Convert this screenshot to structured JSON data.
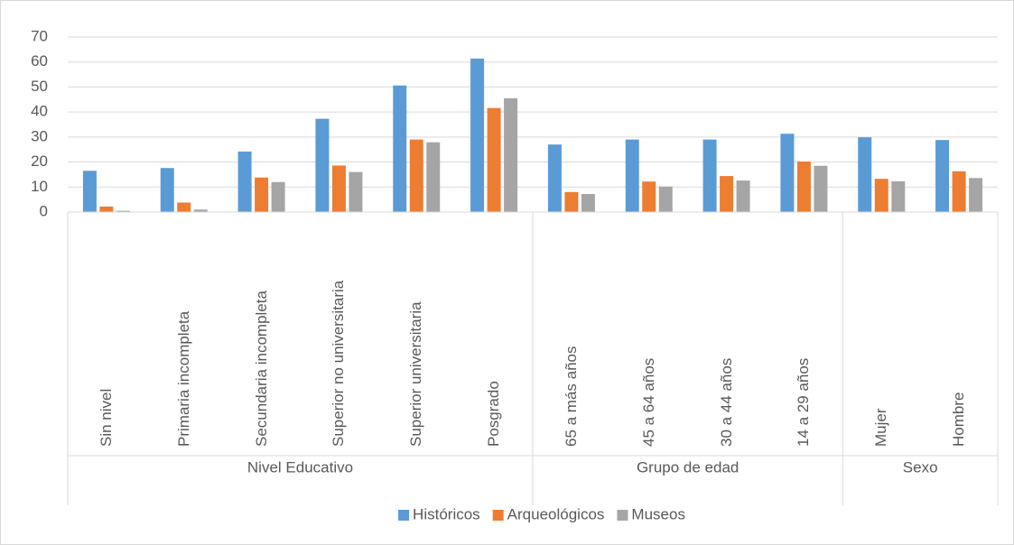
{
  "chart_data": {
    "type": "bar",
    "category_groups": [
      {
        "name": "Nivel Educativo",
        "categories": [
          "Sin nivel",
          "Primaria incompleta",
          "Secundaria incompleta",
          "Superior no universitaria",
          "Superior universitaria",
          "Posgrado"
        ]
      },
      {
        "name": "Grupo de edad",
        "categories": [
          "65 a más años",
          "45 a 64 años",
          "30 a 44 años",
          "14 a 29 años"
        ]
      },
      {
        "name": "Sexo",
        "categories": [
          "Mujer",
          "Hombre"
        ]
      }
    ],
    "series": [
      {
        "name": "Históricos",
        "color": "#5b9bd5",
        "values": [
          16.5,
          17.6,
          24.2,
          37.3,
          50.6,
          61.4,
          27.0,
          29.0,
          29.0,
          31.3,
          29.9,
          28.8
        ]
      },
      {
        "name": "Arqueológicos",
        "color": "#ed7d31",
        "values": [
          2.2,
          3.8,
          13.8,
          18.6,
          29.0,
          41.6,
          8.0,
          12.2,
          14.4,
          20.2,
          13.3,
          16.3
        ]
      },
      {
        "name": "Museos",
        "color": "#a5a5a5",
        "values": [
          0.5,
          1.0,
          12.0,
          16.0,
          27.9,
          45.5,
          7.2,
          10.2,
          12.6,
          18.5,
          12.3,
          13.6
        ]
      }
    ],
    "ylim": [
      0,
      70
    ],
    "yticks": [
      0,
      10,
      20,
      30,
      40,
      50,
      60,
      70
    ],
    "grid": true,
    "legend": "bottom"
  }
}
